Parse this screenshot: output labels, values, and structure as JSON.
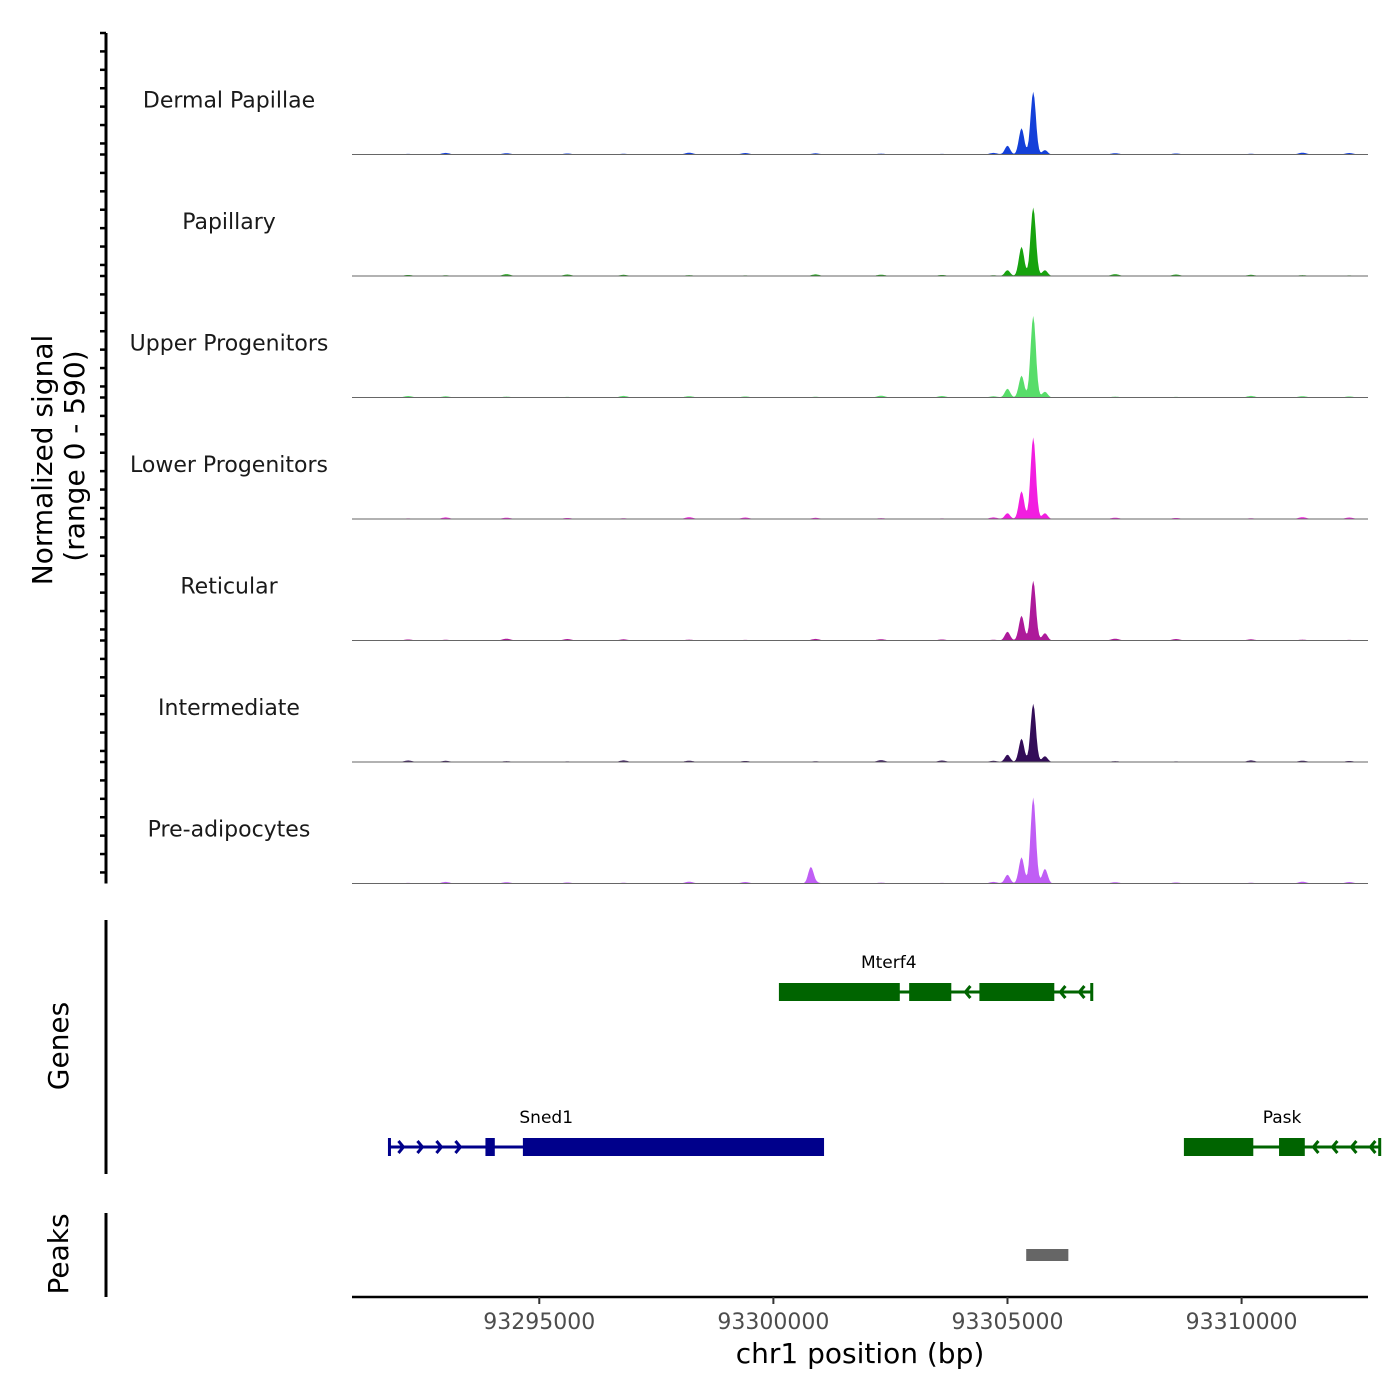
{
  "chart_data": {
    "type": "area",
    "title": "",
    "chromosome": "chr1",
    "xlabel": "chr1 position (bp)",
    "ylabel": "Normalized signal",
    "ylabel_range": "(range 0 - 590)",
    "xlim": [
      93291000,
      93312700
    ],
    "ylim": [
      0,
      590
    ],
    "x_ticks": [
      93295000,
      93300000,
      93305000,
      93310000
    ],
    "x_tick_labels": [
      "93295000",
      "93300000",
      "93305000",
      "93310000"
    ],
    "tracks": [
      {
        "name": "Dermal Papillae",
        "color": "#1440d9",
        "peaks": [
          [
            93305000,
            60
          ],
          [
            93305300,
            180
          ],
          [
            93305550,
            430
          ],
          [
            93305800,
            30
          ]
        ]
      },
      {
        "name": "Papillary",
        "color": "#17a30e",
        "peaks": [
          [
            93305000,
            40
          ],
          [
            93305300,
            200
          ],
          [
            93305550,
            470
          ],
          [
            93305800,
            40
          ]
        ]
      },
      {
        "name": "Upper Progenitors",
        "color": "#58dd6a",
        "peaks": [
          [
            93305000,
            60
          ],
          [
            93305300,
            150
          ],
          [
            93305550,
            560
          ],
          [
            93305800,
            40
          ]
        ]
      },
      {
        "name": "Lower Progenitors",
        "color": "#f21ee0",
        "peaks": [
          [
            93305000,
            40
          ],
          [
            93305300,
            190
          ],
          [
            93305550,
            560
          ],
          [
            93305800,
            40
          ]
        ]
      },
      {
        "name": "Reticular",
        "color": "#ad1a9a",
        "peaks": [
          [
            93305000,
            60
          ],
          [
            93305300,
            170
          ],
          [
            93305550,
            410
          ],
          [
            93305800,
            50
          ]
        ]
      },
      {
        "name": "Intermediate",
        "color": "#330d58",
        "peaks": [
          [
            93305000,
            50
          ],
          [
            93305300,
            160
          ],
          [
            93305550,
            400
          ],
          [
            93305800,
            40
          ]
        ]
      },
      {
        "name": "Pre-adipocytes",
        "color": "#c05ef5",
        "peaks": [
          [
            93300800,
            110
          ],
          [
            93305000,
            60
          ],
          [
            93305300,
            180
          ],
          [
            93305550,
            590
          ],
          [
            93305800,
            100
          ]
        ]
      }
    ],
    "genes_track_label": "Genes",
    "genes": [
      {
        "name": "Mterf4",
        "strand": "-",
        "color": "#006400",
        "start": 93300150,
        "end": 93306800,
        "exons": [
          [
            93300150,
            93302700
          ],
          [
            93302900,
            93303800
          ],
          [
            93304400,
            93306000
          ]
        ]
      },
      {
        "name": "Sned1",
        "strand": "+",
        "color": "#00008b",
        "start": 93291800,
        "end": 93301050,
        "exons": [
          [
            93293850,
            93294050
          ],
          [
            93294650,
            93301050
          ]
        ]
      },
      {
        "name": "Pask",
        "strand": "-",
        "color": "#006400",
        "start": 93308800,
        "end": 93312950,
        "exons": [
          [
            93308800,
            93310250
          ],
          [
            93310800,
            93311350
          ]
        ]
      }
    ],
    "peaks_track_label": "Peaks",
    "peak_regions": [
      [
        93305400,
        93306300
      ]
    ],
    "peak_color": "#666666"
  }
}
